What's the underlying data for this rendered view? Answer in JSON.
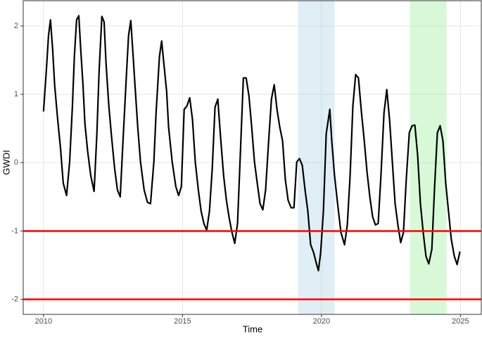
{
  "chart_data": {
    "type": "line",
    "x_label": "Time",
    "y_label": "GWDI",
    "xlim": [
      2009.27,
      2025.75
    ],
    "ylim": [
      -2.22,
      2.37
    ],
    "xticks": [
      2010,
      2015,
      2020,
      2025
    ],
    "yticks": [
      -2,
      -1,
      0,
      1,
      2
    ],
    "grid": true,
    "bands": [
      {
        "range": [
          2019.16,
          2020.47
        ],
        "color": "#a6cee3"
      },
      {
        "range": [
          2023.18,
          2024.5
        ],
        "color": "#90ee90"
      }
    ],
    "hlines": [
      -1,
      -2
    ],
    "hline_color": "#ff0000",
    "x": [
      2010.0,
      2010.1,
      2010.18,
      2010.25,
      2010.33,
      2010.4,
      2010.51,
      2010.61,
      2010.71,
      2010.83,
      2010.94,
      2011.04,
      2011.11,
      2011.19,
      2011.27,
      2011.34,
      2011.42,
      2011.49,
      2011.59,
      2011.7,
      2011.82,
      2011.92,
      2012.0,
      2012.1,
      2012.18,
      2012.25,
      2012.35,
      2012.45,
      2012.56,
      2012.66,
      2012.76,
      2012.86,
      2012.99,
      2013.06,
      2013.14,
      2013.21,
      2013.29,
      2013.39,
      2013.49,
      2013.62,
      2013.74,
      2013.85,
      2013.97,
      2014.05,
      2014.17,
      2014.25,
      2014.33,
      2014.43,
      2014.5,
      2014.63,
      2014.76,
      2014.86,
      2014.96,
      2015.06,
      2015.16,
      2015.26,
      2015.36,
      2015.46,
      2015.57,
      2015.67,
      2015.77,
      2015.87,
      2015.97,
      2016.07,
      2016.17,
      2016.27,
      2016.38,
      2016.48,
      2016.58,
      2016.68,
      2016.78,
      2016.88,
      2016.98,
      2017.08,
      2017.19,
      2017.29,
      2017.39,
      2017.49,
      2017.59,
      2017.69,
      2017.79,
      2017.89,
      2017.99,
      2018.1,
      2018.2,
      2018.3,
      2018.4,
      2018.5,
      2018.6,
      2018.7,
      2018.8,
      2018.91,
      2019.01,
      2019.11,
      2019.21,
      2019.31,
      2019.41,
      2019.51,
      2019.61,
      2019.72,
      2019.82,
      2019.89,
      2019.97,
      2020.07,
      2020.17,
      2020.3,
      2020.37,
      2020.47,
      2020.58,
      2020.7,
      2020.83,
      2020.93,
      2021.03,
      2021.13,
      2021.23,
      2021.33,
      2021.44,
      2021.54,
      2021.64,
      2021.74,
      2021.84,
      2021.94,
      2022.04,
      2022.14,
      2022.25,
      2022.35,
      2022.45,
      2022.55,
      2022.65,
      2022.75,
      2022.85,
      2022.95,
      2023.05,
      2023.16,
      2023.26,
      2023.36,
      2023.46,
      2023.56,
      2023.66,
      2023.76,
      2023.86,
      2023.97,
      2024.07,
      2024.17,
      2024.27,
      2024.37,
      2024.47,
      2024.57,
      2024.67,
      2024.78,
      2024.88,
      2024.98
    ],
    "series": [
      {
        "color": "#000000",
        "values": [
          0.75,
          1.34,
          1.86,
          2.09,
          1.65,
          1.14,
          0.63,
          0.22,
          -0.3,
          -0.48,
          0.01,
          0.83,
          1.55,
          2.09,
          2.15,
          1.65,
          1.14,
          0.57,
          0.16,
          -0.19,
          -0.42,
          0.42,
          1.34,
          2.14,
          2.06,
          1.45,
          0.83,
          0.37,
          -0.09,
          -0.4,
          -0.5,
          0.32,
          1.34,
          1.86,
          2.08,
          1.65,
          1.14,
          0.52,
          0.01,
          -0.4,
          -0.58,
          -0.6,
          0.01,
          0.73,
          1.55,
          1.78,
          1.45,
          1.04,
          0.52,
          0.01,
          -0.35,
          -0.48,
          -0.35,
          0.78,
          0.83,
          0.95,
          0.63,
          0.01,
          -0.4,
          -0.71,
          -0.89,
          -0.99,
          -0.71,
          -0.09,
          0.81,
          0.93,
          0.32,
          -0.19,
          -0.55,
          -0.81,
          -1.02,
          -1.18,
          -0.89,
          0.11,
          1.24,
          1.24,
          0.98,
          0.52,
          0.01,
          -0.3,
          -0.6,
          -0.69,
          -0.4,
          0.32,
          0.93,
          1.14,
          0.78,
          0.52,
          0.32,
          -0.25,
          -0.55,
          -0.66,
          -0.66,
          0.01,
          0.06,
          -0.04,
          -0.4,
          -0.71,
          -1.2,
          -1.32,
          -1.48,
          -1.58,
          -1.32,
          -0.71,
          0.42,
          0.78,
          0.32,
          -0.19,
          -0.6,
          -1.02,
          -1.2,
          -0.91,
          -0.19,
          0.83,
          1.29,
          1.24,
          0.73,
          0.32,
          -0.14,
          -0.5,
          -0.79,
          -0.91,
          -0.89,
          -0.19,
          0.73,
          1.07,
          0.63,
          0.01,
          -0.6,
          -0.91,
          -1.17,
          -1.02,
          -0.25,
          0.44,
          0.54,
          0.55,
          0.11,
          -0.6,
          -1.02,
          -1.37,
          -1.48,
          -1.27,
          -0.35,
          0.44,
          0.54,
          0.32,
          -0.3,
          -0.71,
          -1.12,
          -1.37,
          -1.49,
          -1.3
        ]
      }
    ]
  }
}
